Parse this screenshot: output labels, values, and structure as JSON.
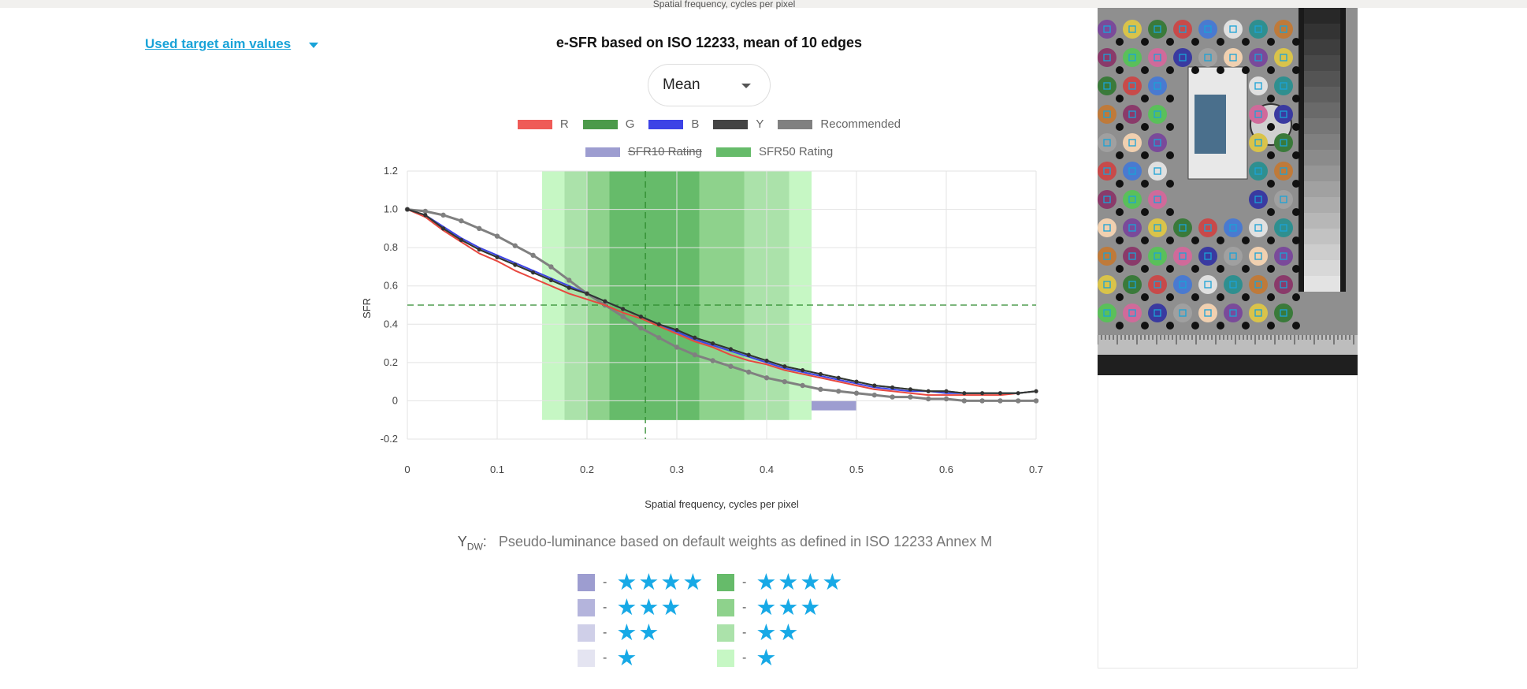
{
  "cut_off_axis_label": "Spatial frequency, cycles per pixel",
  "target_aim_link": "Used target aim values",
  "chart_data": {
    "type": "line",
    "title": "e-SFR based on ISO 12233, mean of 10 edges",
    "xlabel": "Spatial frequency, cycles per pixel",
    "ylabel": "SFR",
    "xlim": [
      0,
      0.7
    ],
    "ylim": [
      -0.2,
      1.2
    ],
    "x_ticks": [
      "0",
      "0.1",
      "0.2",
      "0.3",
      "0.4",
      "0.5",
      "0.6",
      "0.7"
    ],
    "y_ticks": [
      "1.2",
      "1.0",
      "0.8",
      "0.6",
      "0.4",
      "0.2",
      "0",
      "-0.2"
    ],
    "grid": true,
    "legend_placement": "top",
    "legend": [
      {
        "name": "R",
        "color": "#ef5b57"
      },
      {
        "name": "G",
        "color": "#4c9a4a"
      },
      {
        "name": "B",
        "color": "#3d43e6"
      },
      {
        "name": "Y",
        "color": "#444444"
      },
      {
        "name": "Recommended",
        "color": "#808080"
      }
    ],
    "legend_ratings": [
      {
        "name": "SFR10 Rating",
        "color": "#9d9dd0",
        "hidden": true
      },
      {
        "name": "SFR50 Rating",
        "color": "#66bb6a",
        "hidden": false
      }
    ],
    "x": [
      0,
      0.02,
      0.04,
      0.06,
      0.08,
      0.1,
      0.12,
      0.14,
      0.16,
      0.18,
      0.2,
      0.22,
      0.24,
      0.26,
      0.28,
      0.3,
      0.32,
      0.34,
      0.36,
      0.38,
      0.4,
      0.42,
      0.44,
      0.46,
      0.48,
      0.5,
      0.52,
      0.54,
      0.56,
      0.58,
      0.6,
      0.62,
      0.64,
      0.66,
      0.68,
      0.7
    ],
    "series": [
      {
        "name": "R",
        "color": "#e8483f",
        "width": 2,
        "markers": false,
        "values": [
          1.0,
          0.96,
          0.89,
          0.83,
          0.77,
          0.73,
          0.68,
          0.64,
          0.6,
          0.56,
          0.53,
          0.5,
          0.46,
          0.43,
          0.39,
          0.35,
          0.31,
          0.28,
          0.24,
          0.21,
          0.19,
          0.16,
          0.14,
          0.12,
          0.1,
          0.08,
          0.06,
          0.05,
          0.04,
          0.03,
          0.03,
          0.03,
          0.03,
          0.03,
          0.04,
          0.05
        ]
      },
      {
        "name": "B",
        "color": "#3d43e6",
        "width": 2,
        "markers": false,
        "values": [
          1.0,
          0.97,
          0.91,
          0.85,
          0.8,
          0.76,
          0.72,
          0.68,
          0.64,
          0.6,
          0.56,
          0.52,
          0.48,
          0.44,
          0.4,
          0.36,
          0.32,
          0.29,
          0.26,
          0.23,
          0.2,
          0.17,
          0.15,
          0.13,
          0.11,
          0.09,
          0.07,
          0.06,
          0.05,
          0.05,
          0.04,
          0.04,
          0.04,
          0.04,
          0.04,
          0.05
        ]
      },
      {
        "name": "G",
        "color": "#3f8f3c",
        "width": 2,
        "markers": false,
        "values": [
          1.0,
          0.97,
          0.9,
          0.84,
          0.79,
          0.75,
          0.71,
          0.67,
          0.63,
          0.59,
          0.56,
          0.52,
          0.48,
          0.44,
          0.4,
          0.37,
          0.33,
          0.3,
          0.27,
          0.24,
          0.21,
          0.18,
          0.16,
          0.14,
          0.12,
          0.1,
          0.08,
          0.07,
          0.06,
          0.05,
          0.05,
          0.04,
          0.04,
          0.04,
          0.04,
          0.05
        ]
      },
      {
        "name": "Y",
        "color": "#333333",
        "width": 2,
        "markers": true,
        "values": [
          1.0,
          0.97,
          0.9,
          0.84,
          0.79,
          0.75,
          0.71,
          0.67,
          0.63,
          0.59,
          0.56,
          0.52,
          0.48,
          0.44,
          0.4,
          0.37,
          0.33,
          0.3,
          0.27,
          0.24,
          0.21,
          0.18,
          0.16,
          0.14,
          0.12,
          0.1,
          0.08,
          0.07,
          0.06,
          0.05,
          0.05,
          0.04,
          0.04,
          0.04,
          0.04,
          0.05
        ]
      },
      {
        "name": "Recommended",
        "color": "#808080",
        "width": 3,
        "markers": true,
        "values": [
          1.0,
          0.99,
          0.97,
          0.94,
          0.9,
          0.86,
          0.81,
          0.76,
          0.7,
          0.63,
          0.56,
          0.5,
          0.44,
          0.38,
          0.33,
          0.28,
          0.24,
          0.21,
          0.18,
          0.15,
          0.12,
          0.1,
          0.08,
          0.06,
          0.05,
          0.04,
          0.03,
          0.02,
          0.02,
          0.01,
          0.01,
          0.0,
          0.0,
          0.0,
          0.0,
          0.0
        ]
      }
    ],
    "sfr50_rating_bands": [
      {
        "x_range": [
          0.15,
          0.45
        ],
        "stars": 1,
        "color": "#c6f7c4"
      },
      {
        "x_range": [
          0.175,
          0.425
        ],
        "stars": 2,
        "color": "#abe2aa"
      },
      {
        "x_range": [
          0.2,
          0.375
        ],
        "stars": 3,
        "color": "#8ed28c"
      },
      {
        "x_range": [
          0.225,
          0.325
        ],
        "stars": 4,
        "color": "#66bb6a"
      }
    ],
    "sfr50_marker_x": 0.265,
    "sfr50_level": 0.5,
    "sfr10_rating_band": {
      "x_range": [
        0.45,
        0.5
      ],
      "value": -0.05,
      "color": "#9d9dd0"
    }
  },
  "rating_select": {
    "value": "Mean"
  },
  "ydw": {
    "symbol": "Y",
    "subscript": "DW",
    "colon": ":",
    "description": "Pseudo-luminance based on default weights as defined in ISO 12233 Annex M"
  },
  "rating_key": {
    "dash": "-",
    "sfr10": [
      {
        "stars": "★★★★",
        "color": "#9d9dd0"
      },
      {
        "stars": "★★★",
        "color": "#b4b4dc"
      },
      {
        "stars": "★★",
        "color": "#cfcfe8"
      },
      {
        "stars": "★",
        "color": "#e4e4f1"
      }
    ],
    "sfr50": [
      {
        "stars": "★★★★",
        "color": "#66bb6a"
      },
      {
        "stars": "★★★",
        "color": "#8ed28c"
      },
      {
        "stars": "★★",
        "color": "#abe2aa"
      },
      {
        "stars": "★",
        "color": "#c6f7c4"
      }
    ]
  }
}
